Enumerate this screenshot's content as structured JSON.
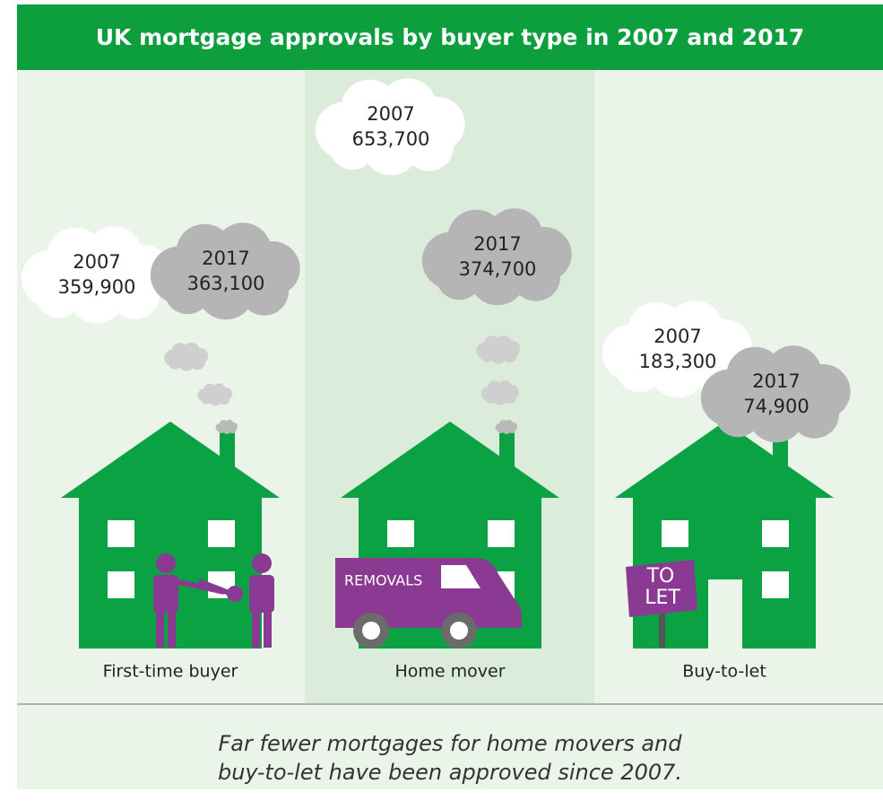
{
  "title": "UK mortgage approvals by buyer type in 2007 and 2017",
  "columns": [
    {
      "label": "First-time buyer",
      "clouds": [
        {
          "year": "2007",
          "value": "359,900"
        },
        {
          "year": "2017",
          "value": "363,100"
        }
      ]
    },
    {
      "label": "Home mover",
      "clouds": [
        {
          "year": "2007",
          "value": "653,700"
        },
        {
          "year": "2017",
          "value": "374,700"
        }
      ]
    },
    {
      "label": "Buy-to-let",
      "clouds": [
        {
          "year": "2007",
          "value": "183,300"
        },
        {
          "year": "2017",
          "value": "74,900"
        }
      ]
    }
  ],
  "van_text": "REMOVALS",
  "sign_text": [
    "TO",
    "LET"
  ],
  "caption": [
    "Far fewer mortgages for home movers and",
    "buy-to-let have been approved since 2007."
  ]
}
